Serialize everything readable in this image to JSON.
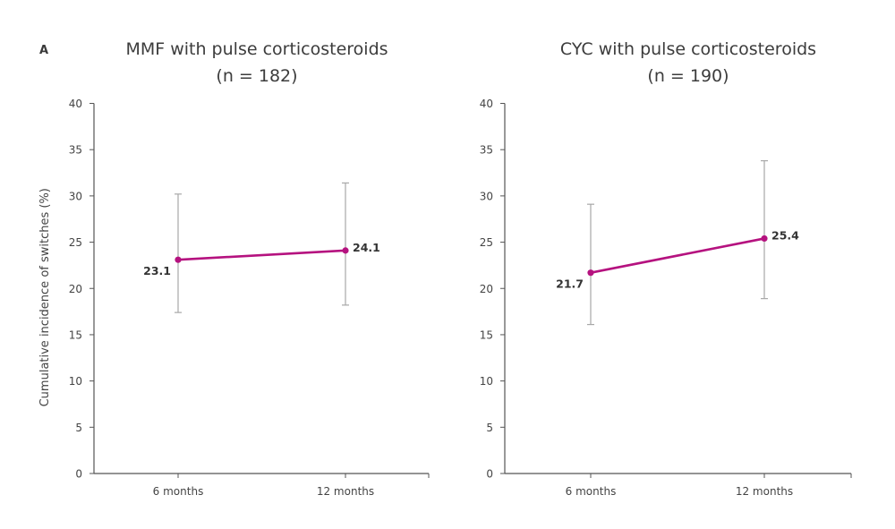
{
  "panel_letter": "A",
  "chart_data": [
    {
      "type": "line",
      "title": "MMF with pulse corticosteroids",
      "subtitle": "(n = 182)",
      "xlabel": "",
      "ylabel": "Cumulative incidence of switches (%)",
      "categories": [
        "6 months",
        "12 months"
      ],
      "ylim": [
        0,
        40
      ],
      "yticks": [
        0,
        5,
        10,
        15,
        20,
        25,
        30,
        35,
        40
      ],
      "grid": false,
      "series": [
        {
          "name": "Cumulative incidence",
          "color": "#b5127f",
          "values": [
            23.1,
            24.1
          ],
          "labels": [
            "23.1",
            "24.1"
          ],
          "error_low": [
            17.4,
            18.2
          ],
          "error_high": [
            30.2,
            31.4
          ]
        }
      ]
    },
    {
      "type": "line",
      "title": "CYC with pulse corticosteroids",
      "subtitle": "(n = 190)",
      "xlabel": "",
      "ylabel": "",
      "categories": [
        "6 months",
        "12 months"
      ],
      "ylim": [
        0,
        40
      ],
      "yticks": [
        0,
        5,
        10,
        15,
        20,
        25,
        30,
        35,
        40
      ],
      "grid": false,
      "series": [
        {
          "name": "Cumulative incidence",
          "color": "#b5127f",
          "values": [
            21.7,
            25.4
          ],
          "labels": [
            "21.7",
            "25.4"
          ],
          "error_low": [
            16.1,
            18.9
          ],
          "error_high": [
            29.1,
            33.8
          ]
        }
      ]
    }
  ]
}
